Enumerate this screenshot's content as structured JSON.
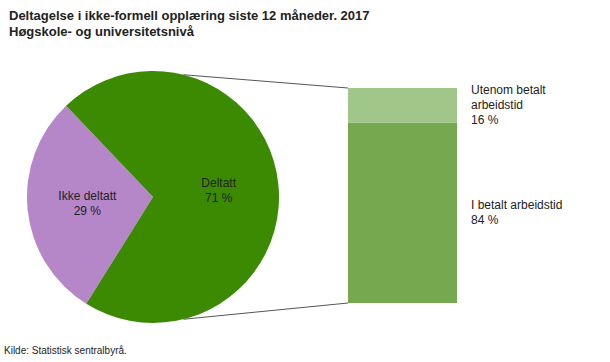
{
  "chart_data": [
    {
      "type": "pie",
      "title": "Deltagelse i ikke-formell opplæring siste 12 måneder. 2017",
      "subtitle": "Høgskole- og universitetsnivå",
      "source": "Kilde: Statistisk sentralbyrå.",
      "categories": [
        "Ikke deltatt",
        "Deltatt"
      ],
      "values": [
        29,
        71
      ],
      "value_labels": [
        "29 %",
        "71 %"
      ],
      "colors": [
        "#b586c8",
        "#3b8a02"
      ],
      "data_labels": true
    },
    {
      "type": "bar",
      "categories": [
        null
      ],
      "stacked": true,
      "data_labels": true,
      "tick_labels": false,
      "ylim": [
        0,
        100
      ],
      "series": [
        {
          "name": "I betalt arbeidstid",
          "color": "#76a94f",
          "values": [
            84
          ],
          "value_labels": [
            "84 %"
          ]
        },
        {
          "name": "Utenom betalt arbeidstid",
          "color": "#a1c689",
          "values": [
            16
          ],
          "value_labels": [
            "16 %"
          ]
        }
      ]
    }
  ]
}
